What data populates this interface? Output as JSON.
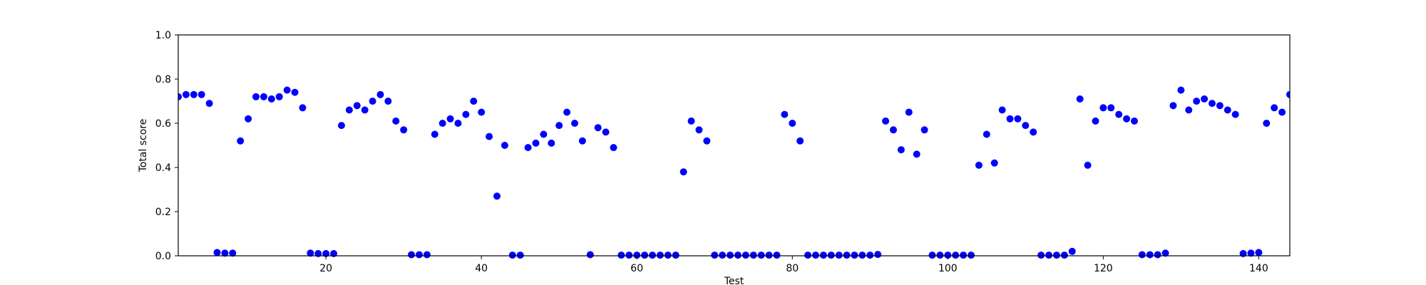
{
  "chart_data": {
    "type": "scatter",
    "xlabel": "Test",
    "ylabel": "Total score",
    "xlim": [
      1,
      144
    ],
    "ylim": [
      0.0,
      1.0
    ],
    "x_ticks": [
      20,
      40,
      60,
      80,
      100,
      120,
      140
    ],
    "y_ticks": [
      0.0,
      0.2,
      0.4,
      0.6,
      0.8,
      1.0
    ],
    "x_tick_labels": [
      "20",
      "40",
      "60",
      "80",
      "100",
      "120",
      "140"
    ],
    "y_tick_labels": [
      "0.0",
      "0.2",
      "0.4",
      "0.6",
      "0.8",
      "1.0"
    ],
    "grid": false,
    "marker_color": "#0000ff",
    "series": [
      {
        "x": [
          1,
          2,
          3,
          4,
          5,
          6,
          7,
          8,
          9,
          10,
          11,
          12,
          13,
          14,
          15,
          16,
          17,
          18,
          19,
          20,
          21,
          22,
          23,
          24,
          25,
          26,
          27,
          28,
          29,
          30,
          31,
          32,
          33,
          34,
          35,
          36,
          37,
          38,
          39,
          40,
          41,
          42,
          43,
          44,
          45,
          46,
          47,
          48,
          49,
          50,
          51,
          52,
          53,
          54,
          55,
          56,
          57,
          58,
          59,
          60,
          61,
          62,
          63,
          64,
          65,
          66,
          67,
          68,
          69,
          70,
          71,
          72,
          73,
          74,
          75,
          76,
          77,
          78,
          79,
          80,
          81,
          82,
          83,
          84,
          85,
          86,
          87,
          88,
          89,
          90,
          91,
          92,
          93,
          94,
          95,
          96,
          97,
          98,
          99,
          100,
          101,
          102,
          103,
          104,
          105,
          106,
          107,
          108,
          109,
          110,
          111,
          112,
          113,
          114,
          115,
          116,
          117,
          118,
          119,
          120,
          121,
          122,
          123,
          124,
          125,
          126,
          127,
          128,
          129,
          130,
          131,
          132,
          133,
          134,
          135,
          136,
          137,
          138,
          139,
          140,
          141,
          142,
          143,
          144
        ],
        "y": [
          0.72,
          0.73,
          0.73,
          0.73,
          0.69,
          0.015,
          0.012,
          0.012,
          0.52,
          0.62,
          0.72,
          0.72,
          0.71,
          0.72,
          0.75,
          0.74,
          0.67,
          0.012,
          0.01,
          0.01,
          0.01,
          0.59,
          0.66,
          0.68,
          0.66,
          0.7,
          0.73,
          0.7,
          0.61,
          0.57,
          0.005,
          0.005,
          0.005,
          0.55,
          0.6,
          0.62,
          0.6,
          0.64,
          0.7,
          0.65,
          0.54,
          0.27,
          0.5,
          0.003,
          0.003,
          0.49,
          0.51,
          0.55,
          0.51,
          0.59,
          0.65,
          0.6,
          0.52,
          0.005,
          0.58,
          0.56,
          0.49,
          0.003,
          0.003,
          0.003,
          0.003,
          0.003,
          0.003,
          0.003,
          0.003,
          0.38,
          0.61,
          0.57,
          0.52,
          0.003,
          0.003,
          0.003,
          0.003,
          0.003,
          0.003,
          0.003,
          0.003,
          0.003,
          0.64,
          0.6,
          0.52,
          0.003,
          0.003,
          0.003,
          0.003,
          0.003,
          0.003,
          0.003,
          0.003,
          0.003,
          0.006,
          0.61,
          0.57,
          0.48,
          0.65,
          0.46,
          0.57,
          0.003,
          0.003,
          0.003,
          0.003,
          0.003,
          0.003,
          0.41,
          0.55,
          0.42,
          0.66,
          0.62,
          0.62,
          0.59,
          0.56,
          0.003,
          0.003,
          0.003,
          0.003,
          0.02,
          0.71,
          0.41,
          0.61,
          0.67,
          0.67,
          0.64,
          0.62,
          0.61,
          0.005,
          0.005,
          0.005,
          0.012,
          0.68,
          0.75,
          0.66,
          0.7,
          0.71,
          0.69,
          0.68,
          0.66,
          0.64,
          0.01,
          0.012,
          0.015,
          0.6,
          0.67,
          0.65,
          0.73
        ]
      }
    ]
  }
}
